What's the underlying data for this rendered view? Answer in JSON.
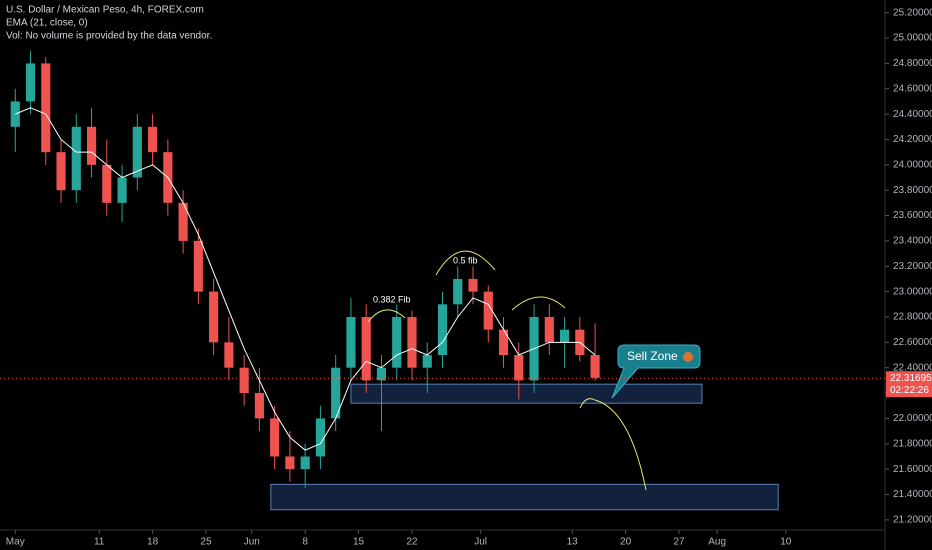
{
  "chart_data": {
    "type": "candlestick",
    "title": "U.S. Dollar / Mexican Peso, 4h, FOREX.com",
    "indicator": "EMA (21, close, 0)",
    "volume_note": "Vol: No volume is provided by the data vendor.",
    "up_color": "#26a69a",
    "down_color": "#ef5350",
    "ema_color": "#ffffff",
    "x": [
      0,
      2,
      4,
      6,
      8,
      10,
      12,
      14,
      16,
      18,
      20,
      22,
      24,
      26,
      28,
      30,
      32,
      34,
      36,
      38,
      40,
      42,
      44,
      46,
      48,
      50,
      52,
      54,
      56,
      58,
      60,
      62,
      64,
      66,
      68,
      70,
      72,
      74,
      76
    ],
    "open": [
      24.3,
      24.5,
      24.8,
      24.1,
      23.8,
      24.3,
      24.0,
      23.7,
      23.9,
      24.3,
      24.1,
      23.7,
      23.4,
      23.0,
      22.6,
      22.4,
      22.2,
      22.0,
      21.7,
      21.6,
      21.7,
      22.0,
      22.4,
      22.8,
      22.3,
      22.4,
      22.8,
      22.4,
      22.5,
      22.9,
      23.1,
      23.0,
      22.7,
      22.5,
      22.3,
      22.8,
      22.6,
      22.7,
      22.5
    ],
    "high": [
      24.6,
      24.9,
      24.85,
      24.2,
      24.4,
      24.45,
      24.2,
      24.0,
      24.4,
      24.4,
      24.2,
      23.8,
      23.5,
      23.1,
      22.8,
      22.5,
      22.4,
      22.1,
      21.9,
      21.8,
      22.1,
      22.5,
      22.95,
      22.9,
      22.5,
      22.9,
      22.85,
      22.6,
      23.0,
      23.2,
      23.2,
      23.05,
      22.8,
      22.6,
      22.9,
      22.9,
      22.8,
      22.8,
      22.75
    ],
    "low": [
      24.1,
      24.4,
      24.0,
      23.7,
      23.7,
      23.9,
      23.6,
      23.55,
      23.8,
      24.0,
      23.6,
      23.3,
      22.9,
      22.5,
      22.3,
      22.1,
      21.9,
      21.6,
      21.5,
      21.45,
      21.6,
      21.9,
      22.3,
      22.2,
      21.9,
      22.3,
      22.3,
      22.2,
      22.4,
      22.8,
      22.9,
      22.6,
      22.4,
      22.15,
      22.2,
      22.5,
      22.4,
      22.45,
      22.3
    ],
    "close": [
      24.5,
      24.8,
      24.1,
      23.8,
      24.3,
      24.0,
      23.7,
      23.9,
      24.3,
      24.1,
      23.7,
      23.4,
      23.0,
      22.6,
      22.4,
      22.2,
      22.0,
      21.7,
      21.6,
      21.7,
      22.0,
      22.4,
      22.8,
      22.3,
      22.4,
      22.8,
      22.4,
      22.5,
      22.9,
      23.1,
      23.0,
      22.7,
      22.5,
      22.3,
      22.8,
      22.6,
      22.7,
      22.5,
      22.32
    ],
    "ema": [
      24.4,
      24.45,
      24.4,
      24.2,
      24.1,
      24.1,
      24.0,
      23.9,
      23.95,
      24.0,
      23.9,
      23.7,
      23.45,
      23.15,
      22.85,
      22.55,
      22.3,
      22.05,
      21.85,
      21.75,
      21.8,
      22.0,
      22.3,
      22.45,
      22.4,
      22.5,
      22.55,
      22.5,
      22.6,
      22.8,
      22.95,
      22.9,
      22.7,
      22.5,
      22.55,
      22.6,
      22.6,
      22.6,
      22.5
    ],
    "zones": [
      {
        "x": [
          44,
          90
        ],
        "y": [
          22.12,
          22.27
        ]
      },
      {
        "x": [
          33.5,
          100
        ],
        "y": [
          21.28,
          21.48
        ]
      }
    ],
    "annotations": [
      "0.382 Fib",
      "0.5 fib",
      "Sell Zone"
    ],
    "last_price": {
      "value": 22.31695,
      "label": "22.31695"
    },
    "countdown": "02:22:26",
    "xlim": [
      -2,
      114
    ],
    "ylim": [
      21.12,
      25.3
    ],
    "xticks": [
      {
        "value": 0,
        "label": "May"
      },
      11,
      18,
      25,
      {
        "value": 31,
        "label": "Jun"
      },
      {
        "value": 38,
        "label": "8"
      },
      {
        "value": 45,
        "label": "15"
      },
      {
        "value": 52,
        "label": "22"
      },
      {
        "value": 61,
        "label": "Jul"
      },
      {
        "value": 73,
        "label": "13"
      },
      {
        "value": 80,
        "label": "20"
      },
      {
        "value": 87,
        "label": "27"
      },
      {
        "value": 92,
        "label": "Aug"
      },
      {
        "value": 101,
        "label": "10"
      }
    ],
    "yticks": [
      {
        "value": 21.2,
        "label": "21.20000"
      },
      {
        "value": 21.4,
        "label": "21.40000"
      },
      {
        "value": 21.6,
        "label": "21.60000"
      },
      {
        "value": 21.8,
        "label": "21.80000"
      },
      {
        "value": 22.0,
        "label": "22.00000"
      },
      {
        "value": 22.2,
        "label": "22.20000"
      },
      {
        "value": 22.4,
        "label": "22.40000"
      },
      {
        "value": 22.6,
        "label": "22.60000"
      },
      {
        "value": 22.8,
        "label": "22.80000"
      },
      {
        "value": 23.0,
        "label": "23.00000"
      },
      {
        "value": 23.2,
        "label": "23.20000"
      },
      {
        "value": 23.4,
        "label": "23.40000"
      },
      {
        "value": 23.6,
        "label": "23.60000"
      },
      {
        "value": 23.8,
        "label": "23.80000"
      },
      {
        "value": 24.0,
        "label": "24.00000"
      },
      {
        "value": 24.2,
        "label": "24.20000"
      },
      {
        "value": 24.4,
        "label": "24.40000"
      },
      {
        "value": 24.6,
        "label": "24.60000"
      },
      {
        "value": 24.8,
        "label": "24.80000"
      },
      {
        "value": 25.0,
        "label": "25.00000"
      },
      {
        "value": 25.2,
        "label": "25.20000"
      }
    ]
  }
}
